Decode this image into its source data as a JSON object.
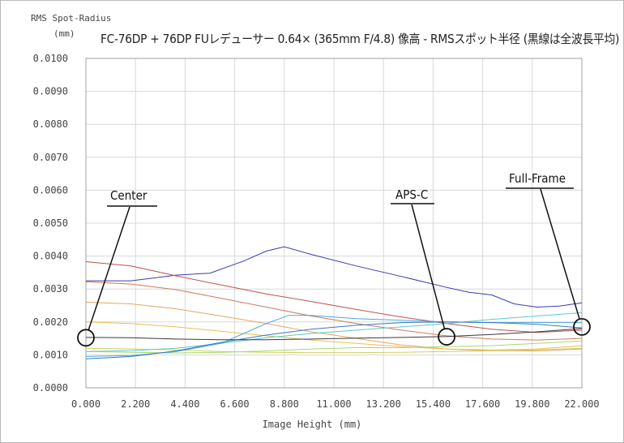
{
  "chart_data": {
    "type": "line",
    "title": "FC-76DP + 76DP FUレデューサー 0.64× (365mm F/4.8) 像高 - RMSスポット半径 (黒線は全波長平均)",
    "ylabel_line1": "RMS Spot-Radius",
    "ylabel_line2": "(mm)",
    "xlabel": "Image Height (mm)",
    "xlim": [
      0,
      22
    ],
    "ylim": [
      0,
      0.01
    ],
    "x_ticks": [
      "0.000",
      "2.200",
      "4.400",
      "6.600",
      "8.800",
      "11.000",
      "13.200",
      "15.400",
      "17.600",
      "19.800",
      "22.000"
    ],
    "y_ticks": [
      "0.0000",
      "0.0010",
      "0.0020",
      "0.0030",
      "0.0040",
      "0.0050",
      "0.0060",
      "0.0070",
      "0.0080",
      "0.0090",
      "0.0100"
    ],
    "grid": true,
    "annotations": [
      {
        "text": "Center",
        "x": 0.0,
        "y": 0.00152
      },
      {
        "text": "APS-C",
        "x": 16.0,
        "y": 0.00155
      },
      {
        "text": "Full-Frame",
        "x": 22.0,
        "y": 0.00185
      }
    ],
    "series": [
      {
        "color": "#3a3ab0",
        "x": [
          0,
          2,
          4,
          5.5,
          7,
          8,
          8.8,
          10,
          12,
          14,
          16,
          17,
          18,
          19,
          20,
          21,
          22
        ],
        "y": [
          0.00325,
          0.00325,
          0.00342,
          0.00348,
          0.00385,
          0.00415,
          0.00428,
          0.00405,
          0.0037,
          0.00338,
          0.00305,
          0.0029,
          0.00282,
          0.00255,
          0.00245,
          0.00248,
          0.00258
        ]
      },
      {
        "color": "#c0504d",
        "x": [
          0,
          2,
          4,
          6,
          8,
          10,
          12,
          14,
          16,
          18,
          20,
          22
        ],
        "y": [
          0.00383,
          0.0037,
          0.0034,
          0.00312,
          0.00285,
          0.00262,
          0.00238,
          0.00215,
          0.00195,
          0.00178,
          0.00168,
          0.00175
        ]
      },
      {
        "color": "#d07a5a",
        "x": [
          0,
          2,
          4,
          6,
          8,
          10,
          12,
          14,
          16,
          18,
          20,
          22
        ],
        "y": [
          0.00322,
          0.00315,
          0.00298,
          0.00272,
          0.00245,
          0.00218,
          0.00195,
          0.00175,
          0.00158,
          0.00148,
          0.00145,
          0.0015
        ]
      },
      {
        "color": "#e8a560",
        "x": [
          0,
          2,
          4,
          6,
          8,
          10,
          12,
          14,
          16,
          18,
          20,
          22
        ],
        "y": [
          0.0026,
          0.00255,
          0.0024,
          0.00218,
          0.00195,
          0.0017,
          0.0015,
          0.0013,
          0.00118,
          0.00112,
          0.00112,
          0.00118
        ]
      },
      {
        "color": "#e8c050",
        "x": [
          0,
          2,
          4,
          6,
          8,
          10,
          12,
          14,
          16,
          18,
          20,
          22
        ],
        "y": [
          0.002,
          0.00195,
          0.00185,
          0.00172,
          0.00158,
          0.00145,
          0.00135,
          0.00125,
          0.00118,
          0.00115,
          0.00118,
          0.00128
        ]
      },
      {
        "color": "#d0d060",
        "x": [
          0,
          2,
          4,
          6,
          8,
          10,
          12,
          14,
          16,
          18,
          20,
          22
        ],
        "y": [
          0.0012,
          0.00118,
          0.00115,
          0.0011,
          0.00108,
          0.00107,
          0.00107,
          0.00108,
          0.0011,
          0.00112,
          0.00115,
          0.0012
        ]
      },
      {
        "color": "#a8d870",
        "x": [
          0,
          2,
          4,
          6,
          8,
          10,
          12,
          14,
          16,
          18,
          20,
          22
        ],
        "y": [
          0.0011,
          0.00108,
          0.00106,
          0.00108,
          0.00112,
          0.00118,
          0.00122,
          0.00122,
          0.00125,
          0.00128,
          0.00135,
          0.00142
        ]
      },
      {
        "color": "#60c8c8",
        "x": [
          0,
          2,
          4,
          6,
          8,
          10,
          12,
          14,
          16,
          18,
          20,
          22
        ],
        "y": [
          0.0011,
          0.00113,
          0.0012,
          0.00135,
          0.00152,
          0.00165,
          0.00175,
          0.00185,
          0.00195,
          0.00208,
          0.00218,
          0.00228
        ]
      },
      {
        "color": "#4aa8d8",
        "x": [
          0,
          2,
          4,
          6,
          7,
          8,
          9,
          10,
          12,
          14,
          16,
          18,
          20,
          22
        ],
        "y": [
          0.00095,
          0.00098,
          0.0011,
          0.00135,
          0.00165,
          0.00195,
          0.0022,
          0.0022,
          0.0021,
          0.00205,
          0.002,
          0.00198,
          0.00198,
          0.00198
        ]
      },
      {
        "color": "#3878c8",
        "x": [
          0,
          2,
          4,
          6,
          8,
          10,
          12,
          14,
          16,
          18,
          20,
          22
        ],
        "y": [
          0.00088,
          0.00095,
          0.00112,
          0.00138,
          0.0016,
          0.00178,
          0.0019,
          0.00198,
          0.002,
          0.00198,
          0.00193,
          0.00182
        ]
      },
      {
        "color": "#3a3a3a",
        "x": [
          0,
          2,
          4,
          6,
          8,
          10,
          12,
          14,
          16,
          18,
          20,
          22
        ],
        "y": [
          0.00153,
          0.00152,
          0.00148,
          0.00146,
          0.00146,
          0.00148,
          0.00151,
          0.00153,
          0.00156,
          0.00162,
          0.0017,
          0.0018
        ]
      }
    ]
  }
}
